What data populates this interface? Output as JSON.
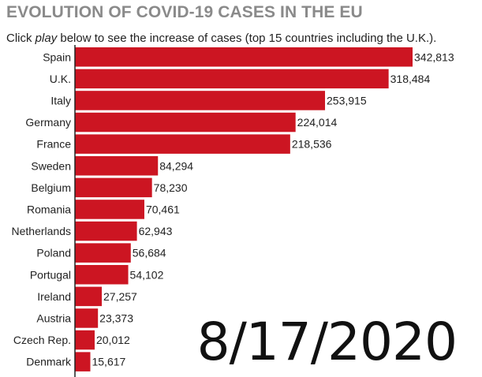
{
  "header": {
    "title": "EVOLUTION OF COVID-19 CASES IN THE EU",
    "subtitle_before": "Click ",
    "subtitle_emph": "play",
    "subtitle_after": " below to see the increase of cases (top 15 countries including the U.K.)."
  },
  "date_label": "8/17/2020",
  "colors": {
    "bar": "#cc1522",
    "axis": "#222222",
    "title": "#8a8a8a"
  },
  "chart_data": {
    "type": "bar",
    "orientation": "horizontal",
    "title": "EVOLUTION OF COVID-19 CASES IN THE EU",
    "categories": [
      "Spain",
      "U.K.",
      "Italy",
      "Germany",
      "France",
      "Sweden",
      "Belgium",
      "Romania",
      "Netherlands",
      "Poland",
      "Portugal",
      "Ireland",
      "Austria",
      "Czech Rep.",
      "Denmark"
    ],
    "values": [
      342813,
      318484,
      253915,
      224014,
      218536,
      84294,
      78230,
      70461,
      62943,
      56684,
      54102,
      27257,
      23373,
      20012,
      15617
    ],
    "value_labels": [
      "342,813",
      "318,484",
      "253,915",
      "224,014",
      "218,536",
      "84,294",
      "78,230",
      "70,461",
      "62,943",
      "56,684",
      "54,102",
      "27,257",
      "23,373",
      "20,012",
      "15,617"
    ],
    "xlabel": "",
    "ylabel": "",
    "xlim": [
      0,
      342813
    ],
    "grid": false,
    "legend": "none"
  }
}
